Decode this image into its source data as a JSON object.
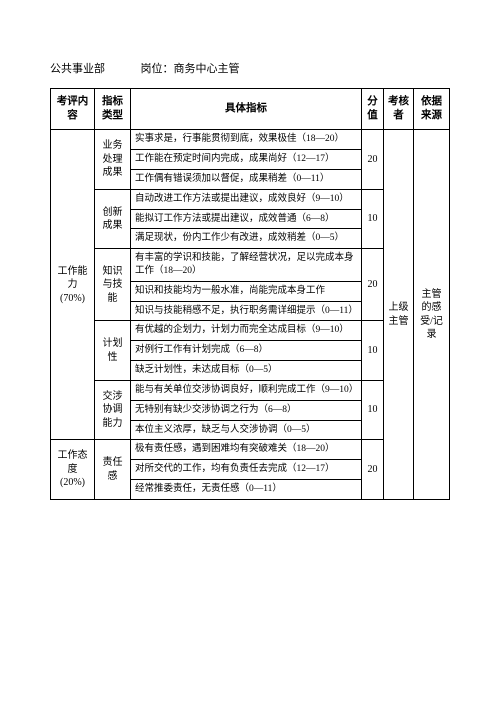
{
  "header": {
    "department": "公共事业部",
    "position_label": "岗位：",
    "position": "商务中心主管"
  },
  "columns": {
    "c1": "考评内容",
    "c2": "指标类型",
    "c3": "具体指标",
    "c4": "分值",
    "c5": "考核者",
    "c6": "依据来源"
  },
  "section1": {
    "name": "工作能力 (70%)",
    "assessor": "上级主管",
    "basis": "主管的感受/记录"
  },
  "g1": {
    "name": "业务处理成果",
    "score": "20",
    "r1": "实事求是，行事能贯彻到底，效果极佳（18—20）",
    "r2": "工作能在预定时间内完成，成果尚好（12—17）",
    "r3": "工作偶有错误须加以督促，成果稍差（0—11）"
  },
  "g2": {
    "name": "创新成果",
    "score": "10",
    "r1": "自动改进工作方法或提出建议，成效良好（9—10）",
    "r2": "能拟订工作方法或提出建议，成效普通（6—8）",
    "r3": "满足现状，份内工作少有改进，成效稍差（0—5）"
  },
  "g3": {
    "name": "知识与技能",
    "score": "20",
    "r1": "有丰富的学识和技能，了解经营状况，足以完成本身工作（18—20）",
    "r2": "知识和技能均为一般水准，尚能完成本身工作",
    "r3": "知识与技能稍感不足，执行职务需详细提示（0—11）"
  },
  "g4": {
    "name": "计划性",
    "score": "10",
    "r1": "有优越的企划力，计划力而完全达成目标（9—10）",
    "r2": "对例行工作有计划完成（6—8）",
    "r3": "缺乏计划性，未达成目标（0—5）"
  },
  "g5": {
    "name": "交涉协调能力",
    "score": "10",
    "r1": "能与有关单位交涉协调良好，顺利完成工作（9—10）",
    "r2": "无特别有缺少交涉协调之行为（6—8）",
    "r3": "本位主义浓厚，缺乏与人交涉协调（0—5）"
  },
  "section2": {
    "name": "工作态度 (20%)"
  },
  "g6": {
    "name": "责任感",
    "score": "20",
    "r1": "极有责任感，遇到困难均有突破难关（18—20）",
    "r2": "对所交代的工作，均有负责任去完成（12—17）",
    "r3": "经常推委责任，无责任感（0—11）"
  }
}
